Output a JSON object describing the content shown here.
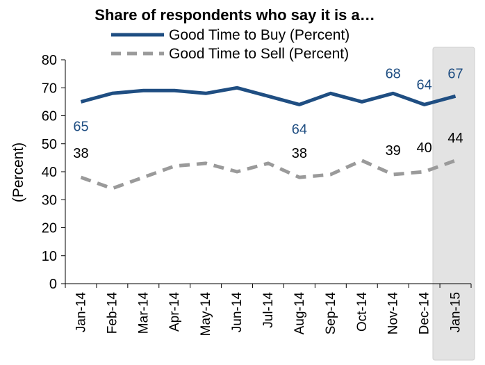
{
  "chart_data": {
    "type": "line",
    "title": "Share of respondents who say it is a…",
    "ylabel": "(Percent)",
    "xlabel": "",
    "ylim": [
      0,
      80
    ],
    "yticks": [
      0,
      10,
      20,
      30,
      40,
      50,
      60,
      70,
      80
    ],
    "categories": [
      "Jan-14",
      "Feb-14",
      "Mar-14",
      "Apr-14",
      "May-14",
      "Jun-14",
      "Jul-14",
      "Aug-14",
      "Sep-14",
      "Oct-14",
      "Nov-14",
      "Dec-14",
      "Jan-15"
    ],
    "highlight_category": "Jan-15",
    "legend_position": "top",
    "series": [
      {
        "name": "Good Time to Buy (Percent)",
        "color": "#1F4E82",
        "style": "solid",
        "values": [
          65,
          68,
          69,
          69,
          68,
          70,
          67,
          64,
          68,
          65,
          68,
          64,
          67
        ],
        "labels": [
          {
            "index": 0,
            "text": "65"
          },
          {
            "index": 7,
            "text": "64"
          },
          {
            "index": 10,
            "text": "68"
          },
          {
            "index": 11,
            "text": "64"
          },
          {
            "index": 12,
            "text": "67"
          }
        ]
      },
      {
        "name": "Good Time to Sell (Percent)",
        "color": "#9A9A9A",
        "style": "dashed",
        "values": [
          38,
          34,
          38,
          42,
          43,
          40,
          43,
          38,
          39,
          44,
          39,
          40,
          44
        ],
        "labels": [
          {
            "index": 0,
            "text": "38"
          },
          {
            "index": 7,
            "text": "38"
          },
          {
            "index": 10,
            "text": "39"
          },
          {
            "index": 11,
            "text": "40"
          },
          {
            "index": 12,
            "text": "44"
          }
        ]
      }
    ]
  }
}
